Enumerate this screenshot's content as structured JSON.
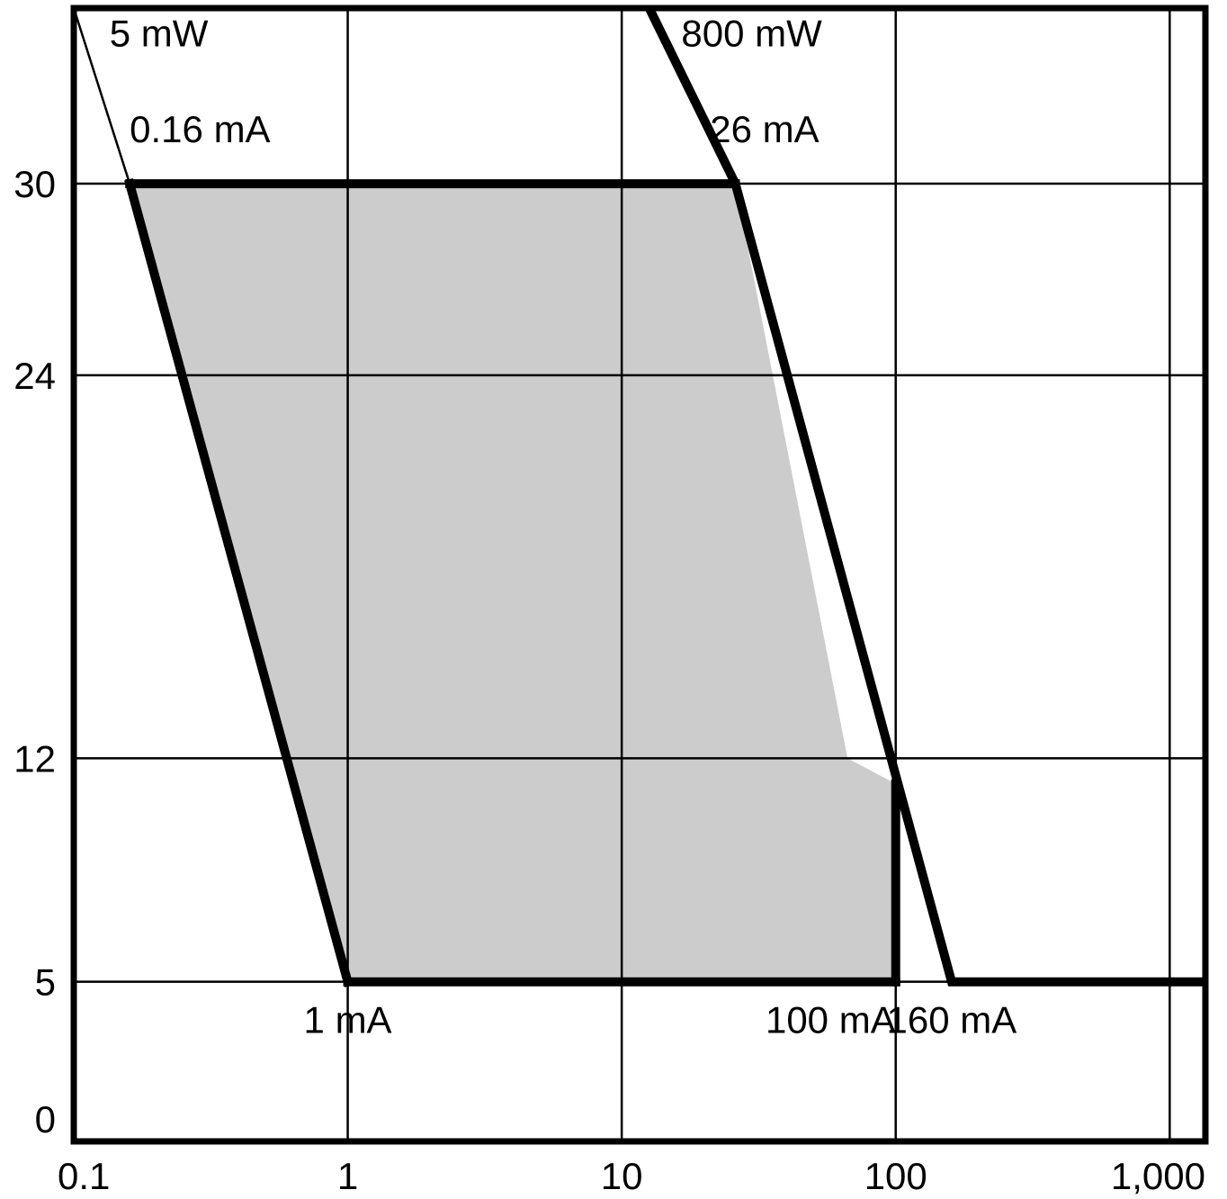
{
  "chart_data": {
    "type": "area",
    "title": "",
    "xlabel": "",
    "ylabel": "",
    "x_scale": "log",
    "y_scale": "linear",
    "xlim": [
      0.1,
      1350
    ],
    "ylim": [
      0,
      35.5
    ],
    "grid": true,
    "x_ticks": [
      {
        "value": 0.1,
        "label": "0.1"
      },
      {
        "value": 1,
        "label": "1"
      },
      {
        "value": 10,
        "label": "10"
      },
      {
        "value": 100,
        "label": "100"
      },
      {
        "value": 1000,
        "label": "1,000"
      }
    ],
    "y_ticks": [
      {
        "value": 0,
        "label": "0"
      },
      {
        "value": 5,
        "label": "5"
      },
      {
        "value": 12,
        "label": "12"
      },
      {
        "value": 24,
        "label": "24"
      },
      {
        "value": 30,
        "label": "30"
      }
    ],
    "operating_region": {
      "fill": "#cccccc",
      "points": [
        [
          0.16,
          30
        ],
        [
          26,
          30
        ],
        [
          66.7,
          12
        ],
        [
          100,
          11.2
        ],
        [
          100,
          5
        ],
        [
          1,
          5
        ]
      ]
    },
    "curves": [
      {
        "label": "5 mW",
        "points": [
          [
            0.1,
            35.5
          ],
          [
            0.16,
            30
          ]
        ]
      },
      {
        "label": "800 mW",
        "points": [
          [
            12.6,
            35.5
          ],
          [
            26,
            30
          ],
          [
            160,
            5
          ],
          [
            1350,
            5
          ]
        ]
      }
    ],
    "boundary_lines": [
      {
        "points": [
          [
            0.16,
            30
          ],
          [
            26,
            30
          ]
        ]
      },
      {
        "points": [
          [
            0.16,
            30
          ],
          [
            1,
            5
          ]
        ]
      },
      {
        "points": [
          [
            1,
            5
          ],
          [
            100,
            5
          ]
        ]
      },
      {
        "points": [
          [
            100,
            5
          ],
          [
            100,
            11.2
          ]
        ]
      }
    ],
    "annotations": [
      {
        "text": "5 mW",
        "x": 0.135,
        "y": 34.3,
        "anchor": "start"
      },
      {
        "text": "800 mW",
        "x": 16.5,
        "y": 34.3,
        "anchor": "start"
      },
      {
        "text": "0.16 mA",
        "x": 0.16,
        "y": 31.3,
        "anchor": "start"
      },
      {
        "text": "26 mA",
        "x": 21,
        "y": 31.3,
        "anchor": "start"
      },
      {
        "text": "1 mA",
        "x": 1,
        "y": 3.4,
        "anchor": "middle"
      },
      {
        "text": "100 mA",
        "x": 100,
        "y": 3.4,
        "anchor": "end"
      },
      {
        "text": "160 mA",
        "x": 160,
        "y": 3.4,
        "anchor": "middle"
      }
    ],
    "colors": {
      "region": "#cccccc",
      "lines": "#000000"
    }
  }
}
